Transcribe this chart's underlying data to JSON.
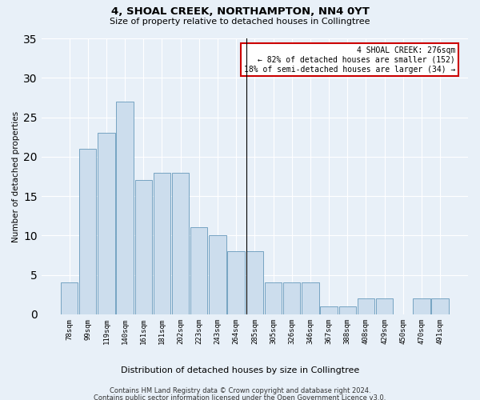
{
  "title1": "4, SHOAL CREEK, NORTHAMPTON, NN4 0YT",
  "title2": "Size of property relative to detached houses in Collingtree",
  "xlabel": "Distribution of detached houses by size in Collingtree",
  "ylabel": "Number of detached properties",
  "categories": [
    "78sqm",
    "99sqm",
    "119sqm",
    "140sqm",
    "161sqm",
    "181sqm",
    "202sqm",
    "223sqm",
    "243sqm",
    "264sqm",
    "285sqm",
    "305sqm",
    "326sqm",
    "346sqm",
    "367sqm",
    "388sqm",
    "408sqm",
    "429sqm",
    "450sqm",
    "470sqm",
    "491sqm"
  ],
  "values": [
    4,
    21,
    23,
    27,
    17,
    18,
    18,
    11,
    10,
    8,
    8,
    4,
    4,
    4,
    1,
    1,
    2,
    2,
    0,
    2,
    2
  ],
  "bar_color": "#ccdded",
  "bar_edge_color": "#6699bb",
  "vline_color": "#000000",
  "annotation_title": "4 SHOAL CREEK: 276sqm",
  "annotation_line1": "← 82% of detached houses are smaller (152)",
  "annotation_line2": "18% of semi-detached houses are larger (34) →",
  "annotation_box_color": "#ffffff",
  "annotation_box_edge": "#cc0000",
  "ylim": [
    0,
    35
  ],
  "yticks": [
    0,
    5,
    10,
    15,
    20,
    25,
    30,
    35
  ],
  "footer1": "Contains HM Land Registry data © Crown copyright and database right 2024.",
  "footer2": "Contains public sector information licensed under the Open Government Licence v3.0.",
  "bg_color": "#e8f0f8"
}
